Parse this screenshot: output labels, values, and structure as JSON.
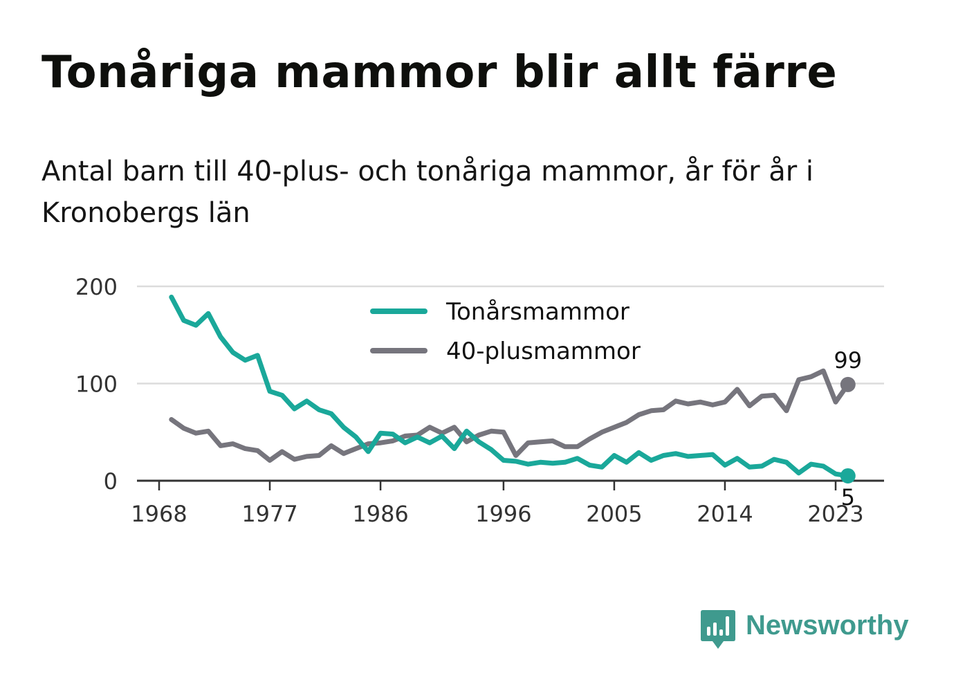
{
  "title": "Tonåriga mammor blir allt färre",
  "subtitle": "Antal barn till 40-plus- och tonåriga mammor, år för år i Kronobergs län",
  "brand": {
    "name": "Newsworthy"
  },
  "colors": {
    "teen": "#1aa89a",
    "forty": "#76757d",
    "grid": "#dcdcdc",
    "axis": "#333333",
    "brand": "#3f9a8e"
  },
  "chart_data": {
    "type": "line",
    "title": "Tonåriga mammor blir allt färre",
    "x": [
      1969,
      1970,
      1971,
      1972,
      1973,
      1974,
      1975,
      1976,
      1977,
      1978,
      1979,
      1980,
      1981,
      1982,
      1983,
      1984,
      1985,
      1986,
      1987,
      1988,
      1989,
      1990,
      1991,
      1992,
      1993,
      1994,
      1995,
      1996,
      1997,
      1998,
      1999,
      2000,
      2001,
      2002,
      2003,
      2004,
      2005,
      2006,
      2007,
      2008,
      2009,
      2010,
      2011,
      2012,
      2013,
      2014,
      2015,
      2016,
      2017,
      2018,
      2019,
      2020,
      2021,
      2022,
      2023,
      2024
    ],
    "xticks": [
      1968,
      1977,
      1986,
      1996,
      2005,
      2014,
      2023
    ],
    "yticks": [
      0,
      100,
      200
    ],
    "ylim": [
      0,
      200
    ],
    "grid": true,
    "legend": "top-center",
    "series": [
      {
        "name": "Tonårsmammor",
        "color": "#1aa89a",
        "values": [
          189,
          165,
          160,
          172,
          148,
          132,
          124,
          129,
          92,
          88,
          74,
          82,
          73,
          69,
          55,
          45,
          30,
          49,
          48,
          39,
          45,
          39,
          46,
          33,
          51,
          40,
          32,
          21,
          20,
          17,
          19,
          18,
          19,
          23,
          16,
          14,
          26,
          19,
          29,
          21,
          26,
          28,
          25,
          26,
          27,
          16,
          23,
          14,
          15,
          22,
          19,
          8,
          17,
          15,
          7,
          5
        ],
        "end_label": "5"
      },
      {
        "name": "40-plusmammor",
        "color": "#76757d",
        "values": [
          63,
          54,
          49,
          51,
          36,
          38,
          33,
          31,
          21,
          30,
          22,
          25,
          26,
          36,
          28,
          33,
          38,
          39,
          41,
          46,
          47,
          55,
          49,
          55,
          40,
          47,
          51,
          50,
          26,
          39,
          40,
          41,
          35,
          35,
          43,
          50,
          55,
          60,
          68,
          72,
          73,
          82,
          79,
          81,
          78,
          81,
          94,
          77,
          87,
          88,
          72,
          104,
          107,
          113,
          81,
          99
        ],
        "end_label": "99"
      }
    ]
  }
}
